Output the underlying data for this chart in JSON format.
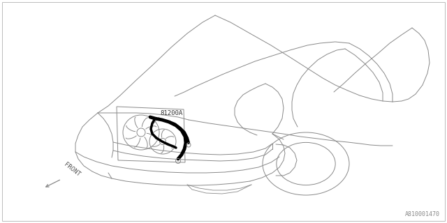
{
  "bg_color": "#ffffff",
  "line_color": "#888888",
  "thick_line_color": "#000000",
  "label_81200A": "81200A",
  "label_front": "FRONT",
  "label_ref": "A810001470",
  "label_fontsize": 6.5,
  "ref_fontsize": 6.0,
  "figsize": [
    6.4,
    3.2
  ],
  "dpi": 100,
  "border_color": "#bbbbbb",
  "lw": 0.7
}
